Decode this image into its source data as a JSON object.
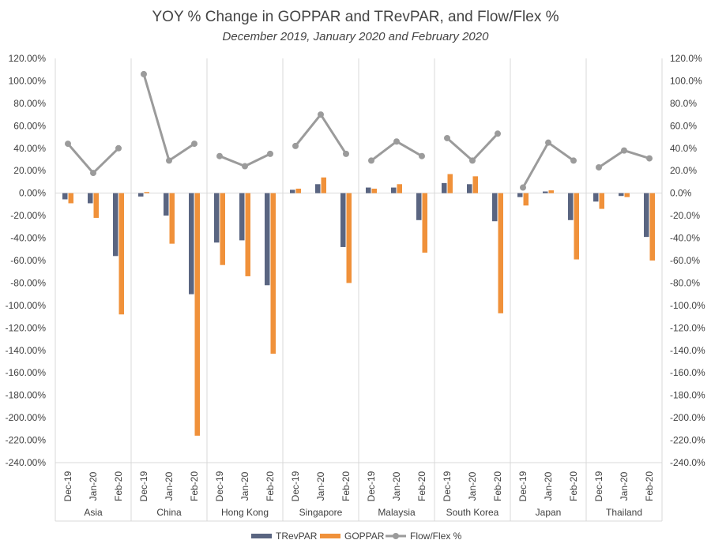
{
  "chart_data": {
    "type": "bar",
    "title": "YOY % Change in GOPPAR and TRevPAR, and Flow/Flex %",
    "subtitle": "December 2019, January 2020 and February 2020",
    "ylim": [
      -240,
      120
    ],
    "y2lim": [
      -240,
      120
    ],
    "y_ticks": [
      "120.00%",
      "100.00%",
      "80.00%",
      "60.00%",
      "40.00%",
      "20.00%",
      "0.00%",
      "-20.00%",
      "-40.00%",
      "-60.00%",
      "-80.00%",
      "-100.00%",
      "-120.00%",
      "-140.00%",
      "-160.00%",
      "-180.00%",
      "-200.00%",
      "-220.00%",
      "-240.00%"
    ],
    "y2_ticks": [
      "120.0%",
      "100.0%",
      "80.0%",
      "60.0%",
      "40.0%",
      "20.0%",
      "0.0%",
      "-20.0%",
      "-40.0%",
      "-60.0%",
      "-80.0%",
      "-100.0%",
      "-120.0%",
      "-140.0%",
      "-160.0%",
      "-180.0%",
      "-200.0%",
      "-220.0%",
      "-240.0%"
    ],
    "groups": [
      "Asia",
      "China",
      "Hong Kong",
      "Singapore",
      "Malaysia",
      "South Korea",
      "Japan",
      "Thailand"
    ],
    "months": [
      "Dec-19",
      "Jan-20",
      "Feb-20"
    ],
    "series": [
      {
        "name": "TRevPAR",
        "type": "bar",
        "color": "#5a6581",
        "values": [
          -5.5,
          -9,
          -56,
          -3,
          -20,
          -90,
          -44,
          -42,
          -82,
          3,
          8,
          -48,
          5,
          5,
          -24,
          9,
          8,
          -25,
          -3.5,
          1.5,
          -24,
          -7.5,
          -2.5,
          -39
        ]
      },
      {
        "name": "GOPPAR",
        "type": "bar",
        "color": "#f0913a",
        "values": [
          -9,
          -22,
          -108,
          1,
          -45,
          -216,
          -64,
          -74,
          -143,
          4,
          14,
          -80,
          4,
          8,
          -53,
          17,
          15,
          -107,
          -11,
          2.5,
          -59,
          -14,
          -3.5,
          -60
        ]
      },
      {
        "name": "Flow/Flex %",
        "type": "line",
        "color": "#9b9b9b",
        "values": [
          44,
          18,
          40,
          106,
          29,
          44,
          33,
          24,
          35,
          42,
          70,
          35,
          29,
          46,
          33,
          49,
          29,
          53,
          5,
          45,
          29,
          23,
          38,
          31
        ]
      }
    ],
    "legend": "bottom",
    "grid": false
  }
}
